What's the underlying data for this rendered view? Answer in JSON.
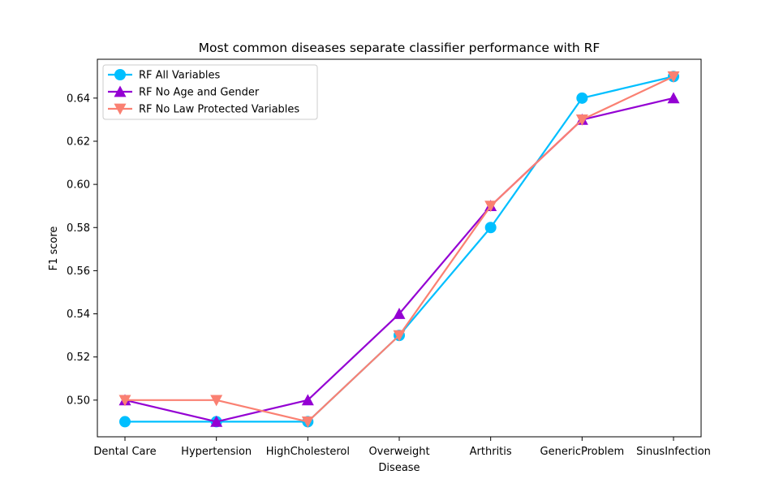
{
  "chart_data": {
    "type": "line",
    "title": "Most common diseases separate classifier performance with RF",
    "xlabel": "Disease",
    "ylabel": "F1 score",
    "categories": [
      "Dental Care",
      "Hypertension",
      "HighCholesterol",
      "Overweight",
      "Arthritis",
      "GenericProblem",
      "SinusInfection"
    ],
    "ylim": [
      0.483,
      0.658
    ],
    "yticks": [
      0.5,
      0.52,
      0.54,
      0.56,
      0.58,
      0.6,
      0.62,
      0.64
    ],
    "ytick_labels": [
      "0.50",
      "0.52",
      "0.54",
      "0.56",
      "0.58",
      "0.60",
      "0.62",
      "0.64"
    ],
    "grid": false,
    "legend_position": "upper-left",
    "series": [
      {
        "name": "RF All Variables",
        "color": "#00bfff",
        "marker": "circle",
        "values": [
          0.49,
          0.49,
          0.49,
          0.53,
          0.58,
          0.64,
          0.65
        ]
      },
      {
        "name": "RF No Age and Gender",
        "color": "#9400d3",
        "marker": "triangle-up",
        "values": [
          0.5,
          0.49,
          0.5,
          0.54,
          0.59,
          0.63,
          0.64
        ]
      },
      {
        "name": "RF No Law Protected Variables",
        "color": "#fa8072",
        "marker": "triangle-down",
        "values": [
          0.5,
          0.5,
          0.49,
          0.53,
          0.59,
          0.63,
          0.65
        ]
      }
    ]
  }
}
